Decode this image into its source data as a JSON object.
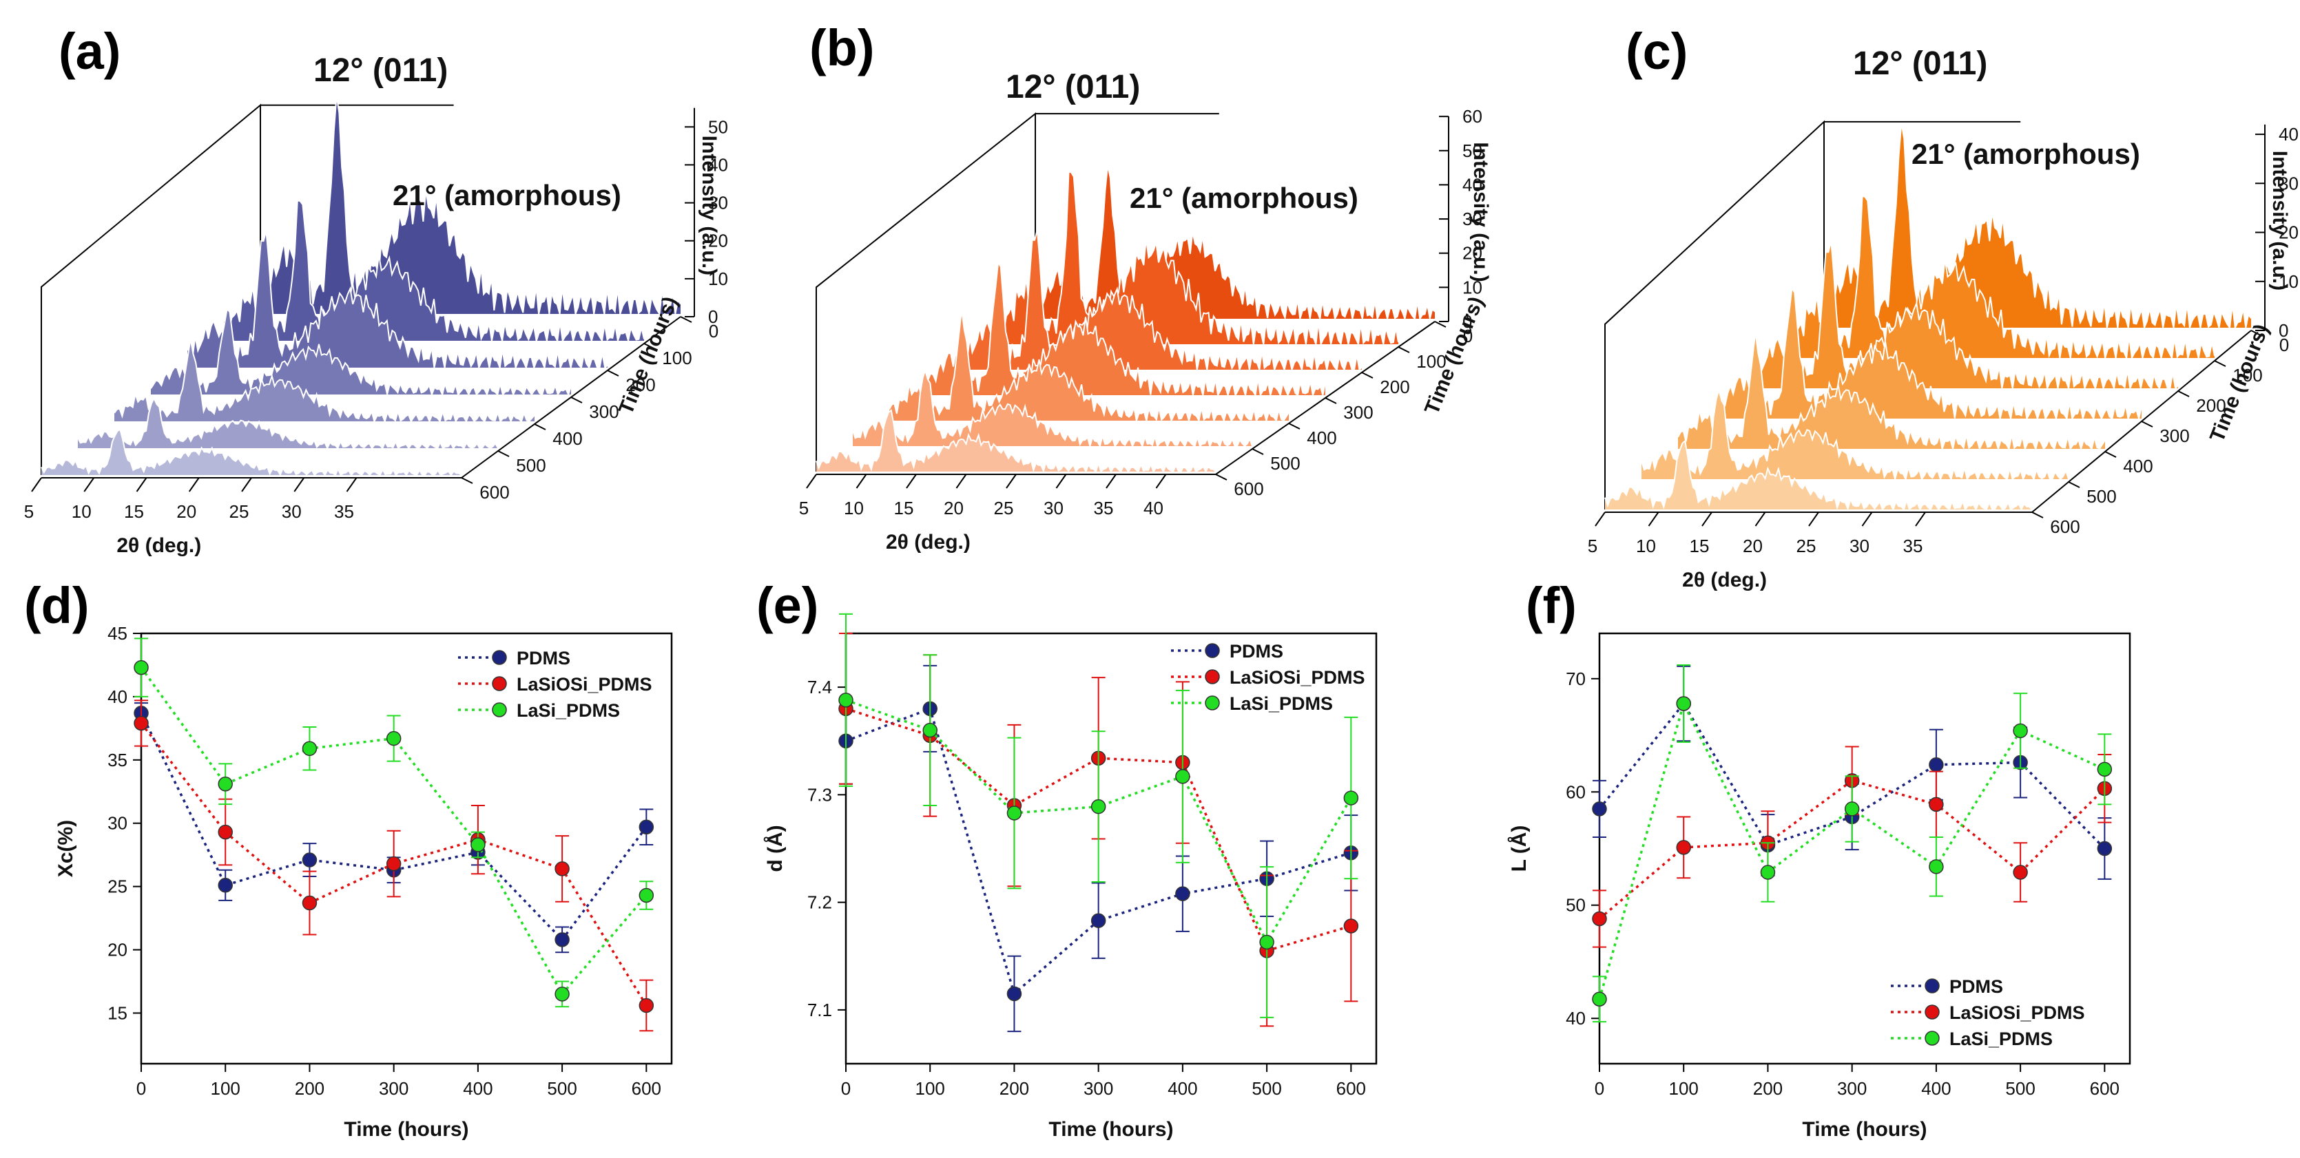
{
  "chart_data": [
    {
      "panel": "(a)",
      "type": "area",
      "style": "waterfall-3d",
      "xlabel": "2θ (deg.)",
      "ylabel": "Time (hours)",
      "zlabel": "Intensity (a.u.)",
      "x_ticks": [
        "5",
        "10",
        "15",
        "20",
        "25",
        "30",
        "35"
      ],
      "y_ticks": [
        "0",
        "100",
        "200",
        "300",
        "400",
        "500",
        "600"
      ],
      "z_ticks": [
        "0",
        "10",
        "20",
        "30",
        "40",
        "50"
      ],
      "xlim": [
        5,
        45
      ],
      "zlim": [
        0,
        55
      ],
      "times": [
        0,
        100,
        200,
        300,
        400,
        500,
        600
      ],
      "annotations": [
        "12° (011)",
        "21° (amorphous)"
      ],
      "peak_heights": [
        55,
        38,
        36,
        22,
        20,
        13,
        12
      ],
      "colors": [
        "#4a4d96",
        "#575aa0",
        "#6668aa",
        "#7779b4",
        "#898bbf",
        "#9ea0cb",
        "#b6b8d9"
      ]
    },
    {
      "panel": "(b)",
      "type": "area",
      "style": "waterfall-3d",
      "xlabel": "2θ (deg.)",
      "ylabel": "Time (hours)",
      "zlabel": "Intensity (a.u.)",
      "x_ticks": [
        "5",
        "10",
        "15",
        "20",
        "25",
        "30",
        "35",
        "40"
      ],
      "y_ticks": [
        "0",
        "100",
        "200",
        "300",
        "400",
        "500",
        "600"
      ],
      "z_ticks": [
        "0",
        "10",
        "20",
        "30",
        "40",
        "50",
        "60"
      ],
      "xlim": [
        5,
        45
      ],
      "zlim": [
        0,
        60
      ],
      "times": [
        0,
        100,
        200,
        300,
        400,
        500,
        600
      ],
      "annotations": [
        "12° (011)",
        "21° (amorphous)"
      ],
      "peak_heights": [
        43,
        52,
        41,
        38,
        30,
        22,
        18
      ],
      "colors": [
        "#e84d10",
        "#ee5a1c",
        "#f1692c",
        "#f47b40",
        "#f78f58",
        "#f9a578",
        "#fbbe9c"
      ]
    },
    {
      "panel": "(c)",
      "type": "area",
      "style": "waterfall-3d",
      "xlabel": "2θ (deg.)",
      "ylabel": "Time (hours)",
      "zlabel": "Intensity (a.u.)",
      "x_ticks": [
        "5",
        "10",
        "15",
        "20",
        "25",
        "30",
        "35"
      ],
      "y_ticks": [
        "0",
        "100",
        "200",
        "300",
        "400",
        "500",
        "600"
      ],
      "z_ticks": [
        "0",
        "10",
        "20",
        "30",
        "40"
      ],
      "xlim": [
        5,
        45
      ],
      "zlim": [
        0,
        42
      ],
      "times": [
        0,
        100,
        200,
        300,
        400,
        500,
        600
      ],
      "annotations": [
        "12° (011)",
        "21° (amorphous)"
      ],
      "peak_heights": [
        40,
        34,
        30,
        26,
        22,
        18,
        14
      ],
      "colors": [
        "#f27a0c",
        "#f4861c",
        "#f5922e",
        "#f69f44",
        "#f8ad5c",
        "#fabd7a",
        "#fcd09e"
      ]
    },
    {
      "panel": "(d)",
      "type": "line",
      "xlabel": "Time (hours)",
      "ylabel": "Xc(%)",
      "xlim": [
        0,
        630
      ],
      "ylim": [
        11,
        45
      ],
      "x_ticks": [
        0,
        100,
        200,
        300,
        400,
        500,
        600
      ],
      "y_ticks": [
        15,
        20,
        25,
        30,
        35,
        40,
        45
      ],
      "legend": "top-right",
      "x": [
        0,
        100,
        200,
        300,
        400,
        500,
        600
      ],
      "series": [
        {
          "name": "PDMS",
          "color": "#1a237e",
          "values": [
            38.7,
            25.1,
            27.1,
            26.3,
            27.7,
            20.8,
            29.7
          ],
          "errors": [
            0.8,
            1.2,
            1.3,
            1.0,
            1.0,
            1.0,
            1.4
          ]
        },
        {
          "name": "LaSiOSi_PDMS",
          "color": "#e01010",
          "values": [
            37.9,
            29.3,
            23.7,
            26.8,
            28.7,
            26.4,
            15.6
          ],
          "errors": [
            1.8,
            2.6,
            2.5,
            2.6,
            2.7,
            2.6,
            2.0
          ]
        },
        {
          "name": "LaSi_PDMS",
          "color": "#22dd22",
          "values": [
            42.3,
            33.1,
            35.9,
            36.7,
            28.3,
            16.5,
            24.3
          ],
          "errors": [
            2.3,
            1.6,
            1.7,
            1.8,
            1.0,
            1.0,
            1.1
          ]
        }
      ]
    },
    {
      "panel": "(e)",
      "type": "line",
      "xlabel": "Time (hours)",
      "ylabel": "d (Å)",
      "xlim": [
        0,
        630
      ],
      "ylim": [
        7.05,
        7.45
      ],
      "x_ticks": [
        0,
        100,
        200,
        300,
        400,
        500,
        600
      ],
      "y_ticks": [
        7.1,
        7.2,
        7.3,
        7.4
      ],
      "legend": "top-right",
      "x": [
        0,
        100,
        200,
        300,
        400,
        500,
        600
      ],
      "series": [
        {
          "name": "PDMS",
          "color": "#1a237e",
          "values": [
            7.35,
            7.38,
            7.115,
            7.183,
            7.208,
            7.222,
            7.246
          ],
          "errors": [
            0.04,
            0.04,
            0.035,
            0.035,
            0.035,
            0.035,
            0.035
          ]
        },
        {
          "name": "LaSiOSi_PDMS",
          "color": "#e01010",
          "values": [
            7.38,
            7.355,
            7.29,
            7.334,
            7.33,
            7.155,
            7.178
          ],
          "errors": [
            0.07,
            0.075,
            0.075,
            0.075,
            0.075,
            0.07,
            0.07
          ]
        },
        {
          "name": "LaSi_PDMS",
          "color": "#22dd22",
          "values": [
            7.388,
            7.36,
            7.283,
            7.289,
            7.317,
            7.163,
            7.297
          ],
          "errors": [
            0.08,
            0.07,
            0.07,
            0.07,
            0.08,
            0.07,
            0.075
          ]
        }
      ]
    },
    {
      "panel": "(f)",
      "type": "line",
      "xlabel": "Time (hours)",
      "ylabel": "L (Å)",
      "xlim": [
        0,
        630
      ],
      "ylim": [
        36,
        74
      ],
      "x_ticks": [
        0,
        100,
        200,
        300,
        400,
        500,
        600
      ],
      "y_ticks": [
        40,
        50,
        60,
        70
      ],
      "legend": "bottom-right",
      "x": [
        0,
        100,
        200,
        300,
        400,
        500,
        600
      ],
      "series": [
        {
          "name": "PDMS",
          "color": "#1a237e",
          "values": [
            58.5,
            67.8,
            55.3,
            57.8,
            62.4,
            62.6,
            55.0
          ],
          "errors": [
            2.5,
            3.3,
            2.7,
            2.9,
            3.1,
            3.1,
            2.7
          ]
        },
        {
          "name": "LaSiOSi_PDMS",
          "color": "#e01010",
          "values": [
            48.8,
            55.1,
            55.5,
            61.0,
            58.9,
            52.9,
            60.3
          ],
          "errors": [
            2.5,
            2.7,
            2.8,
            3.0,
            2.9,
            2.6,
            3.0
          ]
        },
        {
          "name": "LaSi_PDMS",
          "color": "#22dd22",
          "values": [
            41.7,
            67.8,
            52.9,
            58.5,
            53.4,
            65.4,
            62.0
          ],
          "errors": [
            2.0,
            3.4,
            2.6,
            2.9,
            2.6,
            3.3,
            3.1
          ]
        }
      ]
    }
  ]
}
